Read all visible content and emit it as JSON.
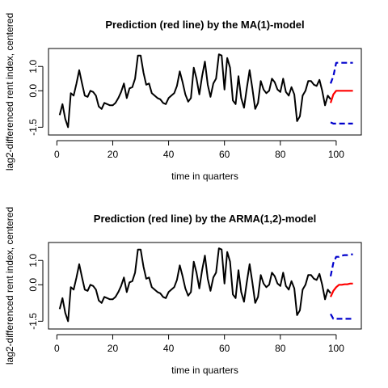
{
  "chart_data": [
    {
      "type": "line",
      "title": "Prediction (red line) by the MA(1)-model",
      "xlabel": "time in quarters",
      "ylabel": "lag2-differenced rent index, centered",
      "xlim": [
        -3,
        109
      ],
      "ylim": [
        -1.82,
        1.74
      ],
      "xticks": [
        0,
        20,
        40,
        60,
        80,
        100
      ],
      "yticks": [
        -1.5,
        0.0,
        1.0
      ],
      "ytick_labels": [
        "-1.5",
        "0.0",
        "1.0"
      ],
      "grid": false,
      "series": [
        {
          "role": "observed",
          "color": "#000000",
          "style": "solid",
          "x": [
            1,
            2,
            3,
            4,
            5,
            6,
            7,
            8,
            9,
            10,
            11,
            12,
            13,
            14,
            15,
            16,
            17,
            18,
            19,
            20,
            21,
            22,
            23,
            24,
            25,
            26,
            27,
            28,
            29,
            30,
            31,
            32,
            33,
            34,
            35,
            36,
            37,
            38,
            39,
            40,
            41,
            42,
            43,
            44,
            45,
            46,
            47,
            48,
            49,
            50,
            51,
            52,
            53,
            54,
            55,
            56,
            57,
            58,
            59,
            60,
            61,
            62,
            63,
            64,
            65,
            66,
            67,
            68,
            69,
            70,
            71,
            72,
            73,
            74,
            75,
            76,
            77,
            78,
            79,
            80,
            81,
            82,
            83,
            84,
            85,
            86,
            87,
            88,
            89,
            90,
            91,
            92,
            93,
            94,
            95,
            96,
            97,
            98
          ],
          "y": [
            -1.0,
            -0.55,
            -1.15,
            -1.5,
            -0.1,
            -0.2,
            0.3,
            0.85,
            0.3,
            -0.2,
            -0.25,
            0.0,
            -0.05,
            -0.2,
            -0.65,
            -0.75,
            -0.5,
            -0.55,
            -0.6,
            -0.6,
            -0.5,
            -0.3,
            -0.05,
            0.3,
            -0.3,
            0.1,
            0.15,
            0.5,
            1.45,
            1.45,
            0.75,
            0.25,
            0.3,
            -0.1,
            -0.2,
            -0.3,
            -0.35,
            -0.5,
            -0.55,
            -0.3,
            -0.2,
            -0.1,
            0.2,
            0.8,
            0.35,
            -0.15,
            -0.45,
            -0.3,
            0.95,
            0.5,
            -0.15,
            0.6,
            1.2,
            0.25,
            -0.25,
            0.3,
            0.5,
            1.5,
            1.45,
            0.05,
            1.35,
            0.95,
            -0.4,
            -0.55,
            0.6,
            -0.3,
            -0.7,
            0.1,
            0.85,
            0.1,
            -0.75,
            -0.5,
            0.4,
            0.05,
            -0.1,
            0.0,
            0.5,
            0.35,
            0.05,
            -0.05,
            0.5,
            -0.05,
            -0.2,
            0.15,
            -0.15,
            -1.25,
            -1.05,
            -0.2,
            0.0,
            0.4,
            0.4,
            0.25,
            0.2,
            0.45,
            0.0,
            -0.6,
            -0.2,
            -0.35
          ]
        },
        {
          "role": "prediction",
          "color": "#ff0000",
          "style": "solid",
          "x": [
            98,
            99,
            100,
            101,
            102,
            103,
            104,
            105,
            106
          ],
          "y": [
            -0.5,
            -0.15,
            0.0,
            0.0,
            0.0,
            0.0,
            0.0,
            0.0,
            0.0
          ]
        },
        {
          "role": "upper-bound",
          "color": "#0000cc",
          "style": "dashed",
          "x": [
            98,
            99,
            100,
            101,
            102,
            103,
            104,
            105,
            106
          ],
          "y": [
            0.3,
            0.6,
            1.15,
            1.15,
            1.15,
            1.15,
            1.15,
            1.15,
            1.15
          ]
        },
        {
          "role": "lower-bound",
          "color": "#0000cc",
          "style": "dashed",
          "x": [
            98,
            99,
            100,
            101,
            102,
            103,
            104,
            105,
            106
          ],
          "y": [
            -1.3,
            -1.35,
            -1.35,
            -1.35,
            -1.35,
            -1.35,
            -1.35,
            -1.35,
            -1.35
          ]
        }
      ]
    },
    {
      "type": "line",
      "title": "Prediction (red line) by the ARMA(1,2)-model",
      "xlabel": "time in quarters",
      "ylabel": "lag2-differenced rent index, centered",
      "xlim": [
        -3,
        109
      ],
      "ylim": [
        -1.82,
        1.74
      ],
      "xticks": [
        0,
        20,
        40,
        60,
        80,
        100
      ],
      "yticks": [
        -1.5,
        0.0,
        1.0
      ],
      "ytick_labels": [
        "-1.5",
        "0.0",
        "1.0"
      ],
      "grid": false,
      "series": [
        {
          "role": "observed",
          "color": "#000000",
          "style": "solid",
          "x": [
            1,
            2,
            3,
            4,
            5,
            6,
            7,
            8,
            9,
            10,
            11,
            12,
            13,
            14,
            15,
            16,
            17,
            18,
            19,
            20,
            21,
            22,
            23,
            24,
            25,
            26,
            27,
            28,
            29,
            30,
            31,
            32,
            33,
            34,
            35,
            36,
            37,
            38,
            39,
            40,
            41,
            42,
            43,
            44,
            45,
            46,
            47,
            48,
            49,
            50,
            51,
            52,
            53,
            54,
            55,
            56,
            57,
            58,
            59,
            60,
            61,
            62,
            63,
            64,
            65,
            66,
            67,
            68,
            69,
            70,
            71,
            72,
            73,
            74,
            75,
            76,
            77,
            78,
            79,
            80,
            81,
            82,
            83,
            84,
            85,
            86,
            87,
            88,
            89,
            90,
            91,
            92,
            93,
            94,
            95,
            96,
            97,
            98
          ],
          "y": [
            -1.0,
            -0.55,
            -1.15,
            -1.5,
            -0.1,
            -0.2,
            0.3,
            0.85,
            0.3,
            -0.2,
            -0.25,
            0.0,
            -0.05,
            -0.2,
            -0.65,
            -0.75,
            -0.5,
            -0.55,
            -0.6,
            -0.6,
            -0.5,
            -0.3,
            -0.05,
            0.3,
            -0.3,
            0.1,
            0.15,
            0.5,
            1.45,
            1.45,
            0.75,
            0.25,
            0.3,
            -0.1,
            -0.2,
            -0.3,
            -0.35,
            -0.5,
            -0.55,
            -0.3,
            -0.2,
            -0.1,
            0.2,
            0.8,
            0.35,
            -0.15,
            -0.45,
            -0.3,
            0.95,
            0.5,
            -0.15,
            0.6,
            1.2,
            0.25,
            -0.25,
            0.3,
            0.5,
            1.5,
            1.45,
            0.05,
            1.35,
            0.95,
            -0.4,
            -0.55,
            0.6,
            -0.3,
            -0.7,
            0.1,
            0.85,
            0.1,
            -0.75,
            -0.5,
            0.4,
            0.05,
            -0.1,
            0.0,
            0.5,
            0.35,
            0.05,
            -0.05,
            0.5,
            -0.05,
            -0.2,
            0.15,
            -0.15,
            -1.25,
            -1.05,
            -0.2,
            0.0,
            0.4,
            0.4,
            0.25,
            0.2,
            0.45,
            0.0,
            -0.6,
            -0.2,
            -0.35
          ]
        },
        {
          "role": "prediction",
          "color": "#ff0000",
          "style": "solid",
          "x": [
            98,
            99,
            100,
            101,
            102,
            103,
            104,
            105,
            106
          ],
          "y": [
            -0.5,
            -0.25,
            -0.1,
            0.0,
            0.0,
            0.02,
            0.02,
            0.05,
            0.05
          ]
        },
        {
          "role": "upper-bound",
          "color": "#0000cc",
          "style": "dashed",
          "x": [
            98,
            99,
            100,
            101,
            102,
            103,
            104,
            105,
            106
          ],
          "y": [
            0.35,
            0.9,
            1.15,
            1.15,
            1.2,
            1.22,
            1.22,
            1.25,
            1.25
          ]
        },
        {
          "role": "lower-bound",
          "color": "#0000cc",
          "style": "dashed",
          "x": [
            98,
            99,
            100,
            101,
            102,
            103,
            104,
            105,
            106
          ],
          "y": [
            -1.2,
            -1.4,
            -1.4,
            -1.4,
            -1.4,
            -1.4,
            -1.4,
            -1.4,
            -1.4
          ]
        }
      ]
    }
  ]
}
